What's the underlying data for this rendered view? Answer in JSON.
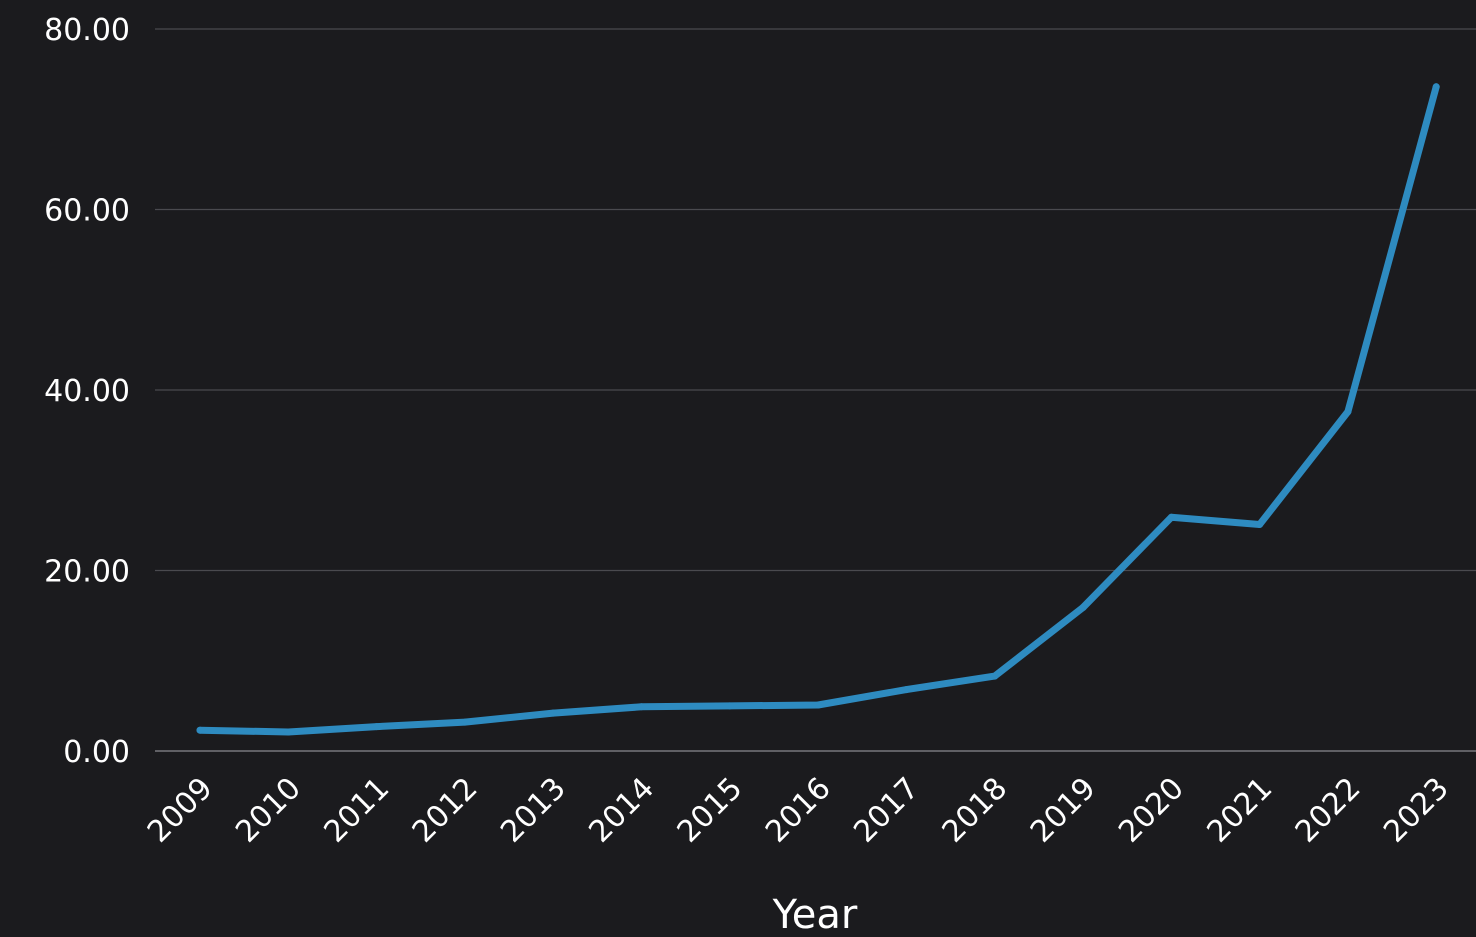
{
  "chart_data": {
    "type": "line",
    "title": "",
    "xlabel": "Year",
    "ylabel": "",
    "ylim": [
      0,
      80
    ],
    "grid": true,
    "colors": {
      "background": "#1b1b1e",
      "series": "#2e8bc0",
      "text": "#ffffff",
      "grid": "#4a4a4f"
    },
    "y_ticks": [
      "0.00",
      "20.00",
      "40.00",
      "60.00",
      "80.00"
    ],
    "categories": [
      "2009",
      "2010",
      "2011",
      "2012",
      "2013",
      "2014",
      "2015",
      "2016",
      "2017",
      "2018",
      "2019",
      "2020",
      "2021",
      "2022",
      "2023"
    ],
    "series": [
      {
        "values": [
          2.3,
          2.1,
          2.7,
          3.2,
          4.2,
          4.9,
          5.0,
          5.1,
          6.8,
          8.3,
          15.9,
          25.9,
          25.1,
          37.6,
          73.6
        ]
      }
    ]
  }
}
